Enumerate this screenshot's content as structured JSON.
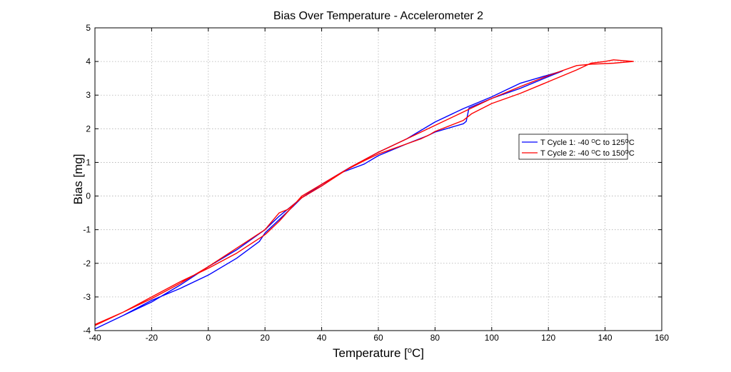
{
  "chart_data": {
    "type": "line",
    "title": "Bias Over Temperature - Accelerometer 2",
    "xlabel": {
      "main": "Temperature [",
      "sup": "o",
      "tail": "C]"
    },
    "ylabel": "Bias [mg]",
    "xlim": [
      -40,
      160
    ],
    "ylim": [
      -4,
      5
    ],
    "xticks": [
      -40,
      -20,
      0,
      20,
      40,
      60,
      80,
      100,
      120,
      140,
      160
    ],
    "yticks": [
      -4,
      -3,
      -2,
      -1,
      0,
      1,
      2,
      3,
      4,
      5
    ],
    "grid": true,
    "legend_position": "right",
    "series": [
      {
        "name": {
          "a": "T Cycle 1: -40 ",
          "s1": "O",
          "b": "C to 125",
          "s2": "O",
          "c": "C"
        },
        "color": "#0000ff",
        "x": [
          -40,
          -30,
          -20,
          -10,
          0,
          10,
          18,
          20,
          25,
          30,
          33,
          40,
          47,
          55,
          60,
          70,
          77,
          80,
          90,
          91,
          92,
          100,
          110,
          120,
          125,
          120,
          110,
          100,
          90,
          80,
          70,
          60,
          50,
          40,
          33,
          25,
          20,
          10,
          0,
          -10,
          -20,
          -30,
          -40
        ],
        "y": [
          -3.95,
          -3.55,
          -3.1,
          -2.75,
          -2.35,
          -1.85,
          -1.35,
          -1.1,
          -0.7,
          -0.3,
          -0.05,
          0.3,
          0.7,
          0.95,
          1.2,
          1.55,
          1.78,
          1.9,
          2.15,
          2.22,
          2.62,
          2.9,
          3.2,
          3.55,
          3.72,
          3.6,
          3.35,
          2.95,
          2.6,
          2.2,
          1.7,
          1.3,
          0.85,
          0.35,
          -0.05,
          -0.6,
          -1.0,
          -1.6,
          -2.1,
          -2.65,
          -3.15,
          -3.55,
          -3.95
        ]
      },
      {
        "name": {
          "a": "T Cycle 2: -40 ",
          "s1": "O",
          "b": "C to 150",
          "s2": "O",
          "c": "C"
        },
        "color": "#ff0000",
        "x": [
          -40,
          -30,
          -20,
          -10,
          0,
          10,
          20,
          25,
          33,
          40,
          48,
          55,
          60,
          70,
          75,
          78,
          80,
          90,
          93,
          100,
          110,
          120,
          130,
          135,
          140,
          143,
          150,
          143,
          135,
          130,
          120,
          110,
          100,
          90,
          80,
          70,
          60,
          50,
          40,
          33,
          28,
          25,
          20,
          10,
          0,
          -10,
          -20,
          -30,
          -40
        ],
        "y": [
          -3.85,
          -3.45,
          -3.0,
          -2.55,
          -2.15,
          -1.7,
          -1.15,
          -0.75,
          0.0,
          0.35,
          0.75,
          1.05,
          1.25,
          1.55,
          1.7,
          1.82,
          1.92,
          2.25,
          2.45,
          2.75,
          3.05,
          3.4,
          3.75,
          3.95,
          4.0,
          4.05,
          4.0,
          3.95,
          3.92,
          3.88,
          3.58,
          3.25,
          2.9,
          2.5,
          2.1,
          1.7,
          1.3,
          0.85,
          0.3,
          -0.05,
          -0.4,
          -0.5,
          -1.0,
          -1.55,
          -2.1,
          -2.6,
          -3.05,
          -3.45,
          -3.82
        ]
      }
    ]
  }
}
